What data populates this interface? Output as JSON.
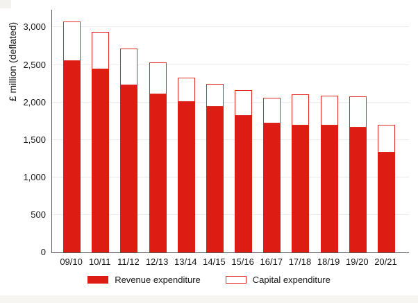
{
  "colors": {
    "bar_fill_red": "#dd1c14",
    "bar_outline_red": "#dd2a22",
    "gridline": "#ececec",
    "axis": "#5a5a5a",
    "text": "#161616",
    "background": "#ffffff"
  },
  "chart_data": {
    "type": "bar",
    "stacked": true,
    "title": "",
    "xlabel": "",
    "ylabel": "£ million (deflated)",
    "categories": [
      "09/10",
      "10/11",
      "11/12",
      "12/13",
      "13/14",
      "14/15",
      "15/16",
      "16/17",
      "17/18",
      "18/19",
      "19/20",
      "20/21"
    ],
    "series": [
      {
        "name": "Revenue expenditure",
        "style": "solid-red",
        "values": [
          2550,
          2440,
          2230,
          2110,
          2010,
          1940,
          1820,
          1720,
          1690,
          1690,
          1660,
          1330
        ]
      },
      {
        "name": "Capital expenditure",
        "style": "outline-red",
        "values": [
          530,
          500,
          490,
          420,
          320,
          310,
          340,
          340,
          420,
          400,
          420,
          370
        ]
      }
    ],
    "totals": [
      3080,
      2940,
      2720,
      2530,
      2330,
      2250,
      2160,
      2060,
      2110,
      2090,
      2080,
      1700
    ],
    "y_ticks": [
      {
        "value": 0,
        "label": "0"
      },
      {
        "value": 500,
        "label": "500"
      },
      {
        "value": 1000,
        "label": "1,000"
      },
      {
        "value": 1500,
        "label": "1,500"
      },
      {
        "value": 2000,
        "label": "2,000"
      },
      {
        "value": 2500,
        "label": "2,500"
      },
      {
        "value": 3000,
        "label": "3,000"
      }
    ],
    "ylim": [
      0,
      3235
    ],
    "grid": "horizontal",
    "legend_position": "bottom-center"
  }
}
